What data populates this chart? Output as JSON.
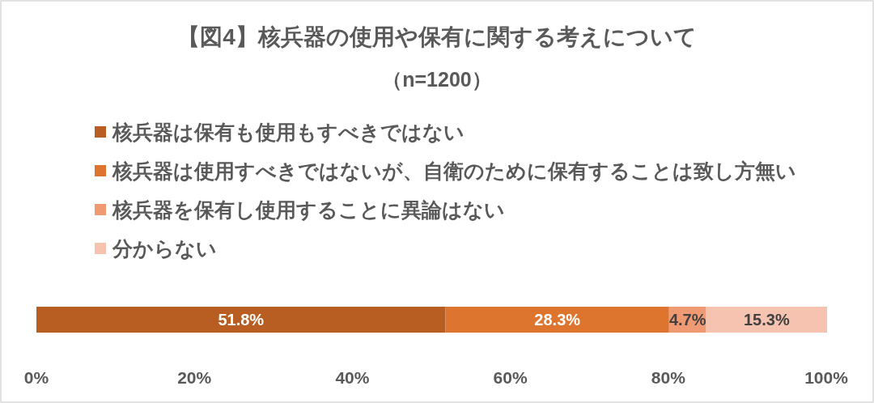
{
  "chart_data": {
    "type": "bar",
    "orientation": "horizontal",
    "stacked": true,
    "title": "【図4】核兵器の使用や保有に関する考えについて",
    "subtitle": "（n=1200）",
    "categories": [
      null
    ],
    "series": [
      {
        "name": "核兵器は保有も使用もすべきではない",
        "color": "#b85e22",
        "values": [
          51.8
        ],
        "value_labels": [
          "51.8%"
        ]
      },
      {
        "name": "核兵器は使用すべきではないが、自衛のために保有することは致し方無い",
        "color": "#de752e",
        "values": [
          28.3
        ],
        "value_labels": [
          "28.3%"
        ]
      },
      {
        "name": "核兵器を保有し使用することに異論はない",
        "color": "#ef9a73",
        "values": [
          4.7
        ],
        "value_labels": [
          "4.7%"
        ]
      },
      {
        "name": "分からない",
        "color": "#f5c3b0",
        "values": [
          15.3
        ],
        "value_labels": [
          "15.3%"
        ]
      }
    ],
    "xlim": [
      0,
      100.1
    ],
    "xticks": [
      {
        "value": 0,
        "label": "0%"
      },
      {
        "value": 20,
        "label": "20%"
      },
      {
        "value": 40,
        "label": "40%"
      },
      {
        "value": 60,
        "label": "60%"
      },
      {
        "value": 80,
        "label": "80%"
      },
      {
        "value": 100,
        "label": "100%"
      }
    ],
    "tick_labels": "x",
    "legend": "top left"
  }
}
